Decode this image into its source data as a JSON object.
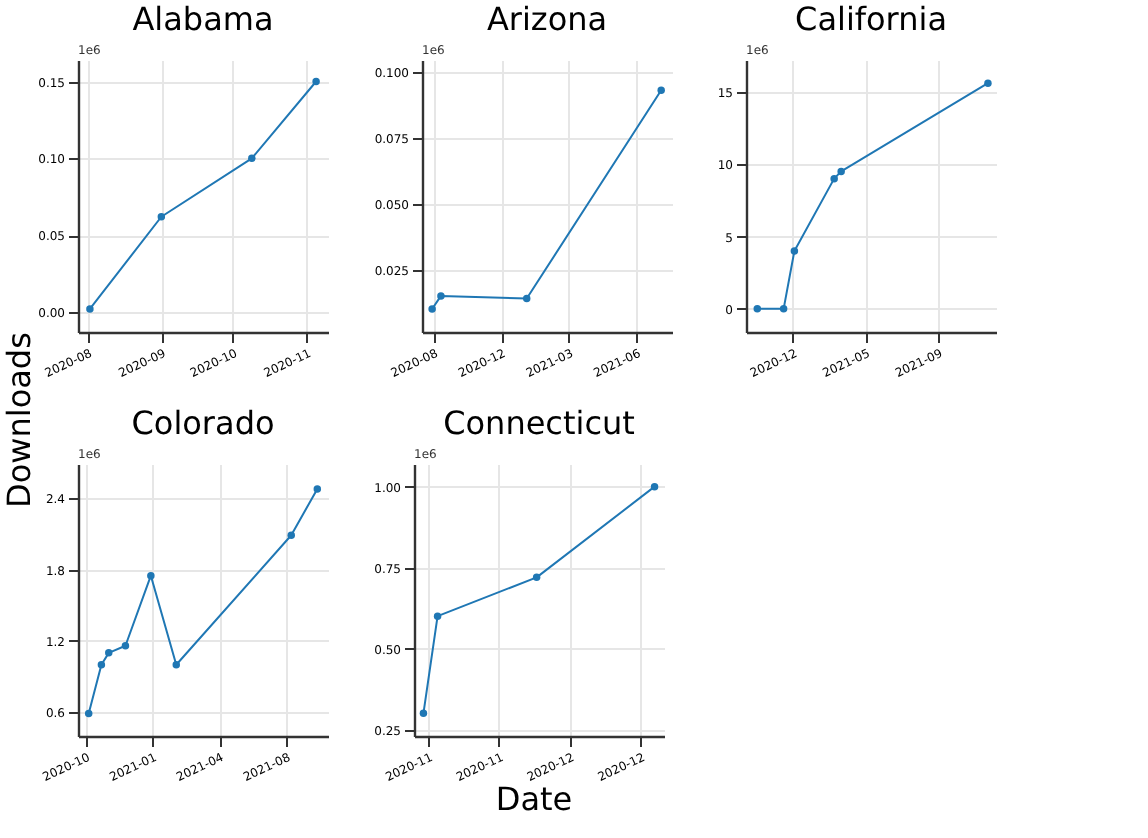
{
  "chart_data": [
    {
      "type": "line",
      "title": "Alabama",
      "annotations": [
        "1e6"
      ],
      "marker": "circle",
      "grid": true,
      "x": [
        "2020-08-02",
        "2020-09-01",
        "2020-10-09",
        "2020-11-05"
      ],
      "series": [
        {
          "color": "#1f77b4",
          "values": [
            0.002,
            0.062,
            0.1,
            0.15
          ]
        }
      ],
      "xlim": [
        "2020-07-28",
        "2020-11-10"
      ],
      "xticks": [
        {
          "value": "2020-08-01",
          "label": "2020-08"
        },
        {
          "value": "2020-09-01",
          "label": "2020-09"
        },
        {
          "value": "2020-10-01",
          "label": "2020-10"
        },
        {
          "value": "2020-11-01",
          "label": "2020-11"
        }
      ],
      "ylim": [
        -0.013,
        0.164
      ],
      "yticks": [
        {
          "value": 0,
          "label": "0.00"
        },
        {
          "value": 0.05,
          "label": "0.05"
        },
        {
          "value": 0.1,
          "label": "0.10"
        },
        {
          "value": 0.15,
          "label": "0.15"
        }
      ]
    },
    {
      "type": "line",
      "title": "Arizona",
      "annotations": [
        "1e6"
      ],
      "marker": "circle",
      "grid": true,
      "x": [
        "2020-08-23",
        "2020-09-05",
        "2021-01-10",
        "2021-07-28"
      ],
      "series": [
        {
          "color": "#1f77b4",
          "values": [
            0.01,
            0.015,
            0.014,
            0.093
          ]
        }
      ],
      "xlim": [
        "2020-08-08",
        "2021-08-13"
      ],
      "xticks": [
        {
          "value": "2020-08-25",
          "label": "2020-08"
        },
        {
          "value": "2020-12-03",
          "label": "2020-12"
        },
        {
          "value": "2021-03-13",
          "label": "2021-03"
        },
        {
          "value": "2021-06-21",
          "label": "2021-06"
        }
      ],
      "ylim": [
        0.0013,
        0.1045
      ],
      "yticks": [
        {
          "value": 0.025,
          "label": "0.025"
        },
        {
          "value": 0.05,
          "label": "0.050"
        },
        {
          "value": 0.075,
          "label": "0.075"
        },
        {
          "value": 0.1,
          "label": "0.100"
        }
      ]
    },
    {
      "type": "line",
      "title": "California",
      "annotations": [
        "1e6"
      ],
      "marker": "circle",
      "grid": true,
      "x": [
        "2020-10-15",
        "2020-12-03",
        "2020-12-23",
        "2021-03-07",
        "2021-03-20",
        "2021-12-18"
      ],
      "series": [
        {
          "color": "#1f77b4",
          "values": [
            0,
            0,
            4.0,
            9.0,
            9.5,
            15.6
          ]
        }
      ],
      "xlim": [
        "2020-09-24",
        "2022-01-02"
      ],
      "xticks": [
        {
          "value": "2020-12-20",
          "label": "2020-12"
        },
        {
          "value": "2021-05-04",
          "label": "2021-05"
        },
        {
          "value": "2021-09-16",
          "label": "2021-09"
        }
      ],
      "ylim": [
        -1.6,
        17.2
      ],
      "yticks": [
        {
          "value": 0,
          "label": "0"
        },
        {
          "value": 5,
          "label": "5"
        },
        {
          "value": 10,
          "label": "10"
        },
        {
          "value": 15,
          "label": "15"
        }
      ]
    },
    {
      "type": "line",
      "title": "Colorado",
      "annotations": [
        "1e6"
      ],
      "marker": "circle",
      "grid": true,
      "ylabel": "Downloads",
      "x": [
        "2020-10-10",
        "2020-10-29",
        "2020-11-09",
        "2020-12-04",
        "2021-01-11",
        "2021-02-18",
        "2021-08-09",
        "2021-09-17"
      ],
      "series": [
        {
          "color": "#1f77b4",
          "values": [
            0.59,
            1.0,
            1.1,
            1.16,
            1.75,
            1.0,
            2.09,
            2.48
          ]
        }
      ],
      "xlim": [
        "2020-09-24",
        "2021-10-03"
      ],
      "xticks": [
        {
          "value": "2020-10-05",
          "label": "2020-10"
        },
        {
          "value": "2021-01-13",
          "label": "2021-01"
        },
        {
          "value": "2021-04-23",
          "label": "2021-04"
        },
        {
          "value": "2021-08-01",
          "label": "2021-08"
        }
      ],
      "ylim": [
        0.4,
        2.69
      ],
      "yticks": [
        {
          "value": 0.6,
          "label": "0.6"
        },
        {
          "value": 1.2,
          "label": "1.2"
        },
        {
          "value": 1.8,
          "label": "1.8"
        },
        {
          "value": 2.4,
          "label": "2.4"
        }
      ]
    },
    {
      "type": "line",
      "title": "Connecticut",
      "annotations": [
        "1e6"
      ],
      "marker": "circle",
      "grid": true,
      "xlabel": "Date",
      "x": [
        "2020-10-31",
        "2020-11-03",
        "2020-11-24",
        "2020-12-19"
      ],
      "series": [
        {
          "color": "#1f77b4",
          "values": [
            0.3,
            0.6,
            0.72,
            1.0
          ]
        }
      ],
      "xlim": [
        "2020-10-29",
        "2020-12-21"
      ],
      "xticks": [
        {
          "value": "2020-11-01",
          "label": "2020-11"
        },
        {
          "value": "2020-11-16",
          "label": "2020-11"
        },
        {
          "value": "2020-12-01",
          "label": "2020-12"
        },
        {
          "value": "2020-12-16",
          "label": "2020-12"
        }
      ],
      "ylim": [
        0.23,
        1.07
      ],
      "yticks": [
        {
          "value": 0.25,
          "label": "0.25"
        },
        {
          "value": 0.5,
          "label": "0.50"
        },
        {
          "value": 0.75,
          "label": "0.75"
        },
        {
          "value": 1.0,
          "label": "1.00"
        }
      ]
    }
  ]
}
